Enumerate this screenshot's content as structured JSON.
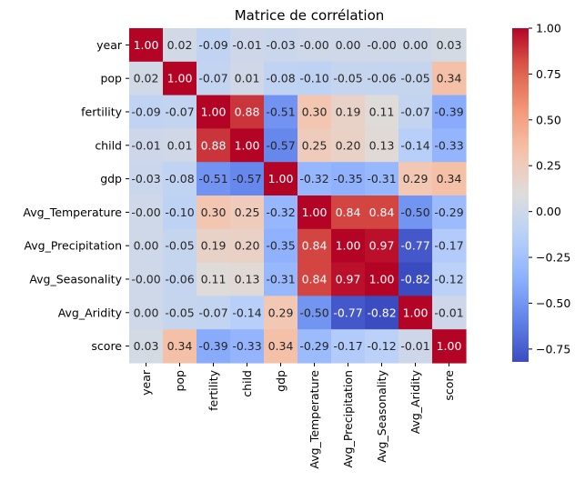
{
  "chart_data": {
    "type": "heatmap",
    "title": "Matrice de corrélation",
    "xlabel": "",
    "ylabel": "",
    "row_labels": [
      "year",
      "pop",
      "fertility",
      "child",
      "gdp",
      "Avg_Temperature",
      "Avg_Precipitation",
      "Avg_Seasonality",
      "Avg_Aridity",
      "score"
    ],
    "col_labels": [
      "year",
      "pop",
      "fertility",
      "child",
      "gdp",
      "Avg_Temperature",
      "Avg_Precipitation",
      "Avg_Seasonality",
      "Avg_Aridity",
      "score"
    ],
    "values": [
      [
        1.0,
        0.02,
        -0.09,
        -0.01,
        -0.03,
        -0.0,
        0.0,
        -0.0,
        0.0,
        0.03
      ],
      [
        0.02,
        1.0,
        -0.07,
        0.01,
        -0.08,
        -0.1,
        -0.05,
        -0.06,
        -0.05,
        0.34
      ],
      [
        -0.09,
        -0.07,
        1.0,
        0.88,
        -0.51,
        0.3,
        0.19,
        0.11,
        -0.07,
        -0.39
      ],
      [
        -0.01,
        0.01,
        0.88,
        1.0,
        -0.57,
        0.25,
        0.2,
        0.13,
        -0.14,
        -0.33
      ],
      [
        -0.03,
        -0.08,
        -0.51,
        -0.57,
        1.0,
        -0.32,
        -0.35,
        -0.31,
        0.29,
        0.34
      ],
      [
        -0.0,
        -0.1,
        0.3,
        0.25,
        -0.32,
        1.0,
        0.84,
        0.84,
        -0.5,
        -0.29
      ],
      [
        0.0,
        -0.05,
        0.19,
        0.2,
        -0.35,
        0.84,
        1.0,
        0.97,
        -0.77,
        -0.17
      ],
      [
        -0.0,
        -0.06,
        0.11,
        0.13,
        -0.31,
        0.84,
        0.97,
        1.0,
        -0.82,
        -0.12
      ],
      [
        0.0,
        -0.05,
        -0.07,
        -0.14,
        0.29,
        -0.5,
        -0.77,
        -0.82,
        1.0,
        -0.01
      ],
      [
        0.03,
        0.34,
        -0.39,
        -0.33,
        0.34,
        -0.29,
        -0.17,
        -0.12,
        -0.01,
        1.0
      ]
    ],
    "annotations": [
      [
        "1.00",
        "0.02",
        "-0.09",
        "-0.01",
        "-0.03",
        "-0.00",
        "0.00",
        "-0.00",
        "0.00",
        "0.03"
      ],
      [
        "0.02",
        "1.00",
        "-0.07",
        "0.01",
        "-0.08",
        "-0.10",
        "-0.05",
        "-0.06",
        "-0.05",
        "0.34"
      ],
      [
        "-0.09",
        "-0.07",
        "1.00",
        "0.88",
        "-0.51",
        "0.30",
        "0.19",
        "0.11",
        "-0.07",
        "-0.39"
      ],
      [
        "-0.01",
        "0.01",
        "0.88",
        "1.00",
        "-0.57",
        "0.25",
        "0.20",
        "0.13",
        "-0.14",
        "-0.33"
      ],
      [
        "-0.03",
        "-0.08",
        "-0.51",
        "-0.57",
        "1.00",
        "-0.32",
        "-0.35",
        "-0.31",
        "0.29",
        "0.34"
      ],
      [
        "-0.00",
        "-0.10",
        "0.30",
        "0.25",
        "-0.32",
        "1.00",
        "0.84",
        "0.84",
        "-0.50",
        "-0.29"
      ],
      [
        "0.00",
        "-0.05",
        "0.19",
        "0.20",
        "-0.35",
        "0.84",
        "1.00",
        "0.97",
        "-0.77",
        "-0.17"
      ],
      [
        "-0.00",
        "-0.06",
        "0.11",
        "0.13",
        "-0.31",
        "0.84",
        "0.97",
        "1.00",
        "-0.82",
        "-0.12"
      ],
      [
        "0.00",
        "-0.05",
        "-0.07",
        "-0.14",
        "0.29",
        "-0.50",
        "-0.77",
        "-0.82",
        "1.00",
        "-0.01"
      ],
      [
        "0.03",
        "0.34",
        "-0.39",
        "-0.33",
        "0.34",
        "-0.29",
        "-0.17",
        "-0.12",
        "-0.01",
        "1.00"
      ]
    ],
    "colormap": "coolwarm",
    "color_range": [
      -0.82,
      1.0
    ],
    "colorbar": {
      "ticks": [
        -0.75,
        -0.5,
        -0.25,
        0.0,
        0.25,
        0.5,
        0.75,
        1.0
      ],
      "tick_labels": [
        "−0.75",
        "−0.50",
        "−0.25",
        "0.00",
        "0.25",
        "0.50",
        "0.75",
        "1.00"
      ]
    },
    "grid": false,
    "legend": "colorbar-right"
  }
}
